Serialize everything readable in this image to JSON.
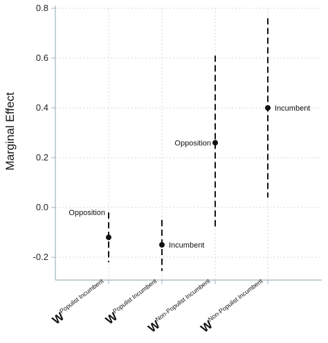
{
  "chart_data": {
    "type": "scatter",
    "ylabel": "Marginal Effect",
    "xlabel": "",
    "title": "",
    "ylim": [
      -0.28,
      0.8
    ],
    "yticks": [
      {
        "value": 0.8,
        "label": "0.8"
      },
      {
        "value": 0.6,
        "label": "0.6"
      },
      {
        "value": 0.4,
        "label": "0.4"
      },
      {
        "value": 0.2,
        "label": "0.2"
      },
      {
        "value": 0.0,
        "label": "0.0"
      },
      {
        "value": -0.2,
        "label": "-0.2"
      }
    ],
    "grid": true,
    "categories": [
      {
        "main": "W",
        "superscript": "Populist Incumbent"
      },
      {
        "main": "W",
        "superscript": "Populist Incumbent"
      },
      {
        "main": "W",
        "superscript": "Non-Populist Incumbent"
      },
      {
        "main": "W",
        "superscript": "Non-Populist Incumbent"
      }
    ],
    "points": [
      {
        "category_index": 0,
        "estimate": -0.12,
        "ci_low": -0.22,
        "ci_high": -0.02,
        "label": "Opposition",
        "label_side": "left"
      },
      {
        "category_index": 1,
        "estimate": -0.15,
        "ci_low": -0.255,
        "ci_high": -0.05,
        "label": "Incumbent",
        "label_side": "right"
      },
      {
        "category_index": 2,
        "estimate": 0.26,
        "ci_low": -0.09,
        "ci_high": 0.61,
        "label": "Opposition",
        "label_side": "left"
      },
      {
        "category_index": 3,
        "estimate": 0.4,
        "ci_low": 0.04,
        "ci_high": 0.76,
        "label": "Incumbent",
        "label_side": "right"
      }
    ],
    "colors": {
      "marks": "#111111",
      "grid": "#d6d6d6",
      "axis": "#9fb3bd"
    }
  }
}
